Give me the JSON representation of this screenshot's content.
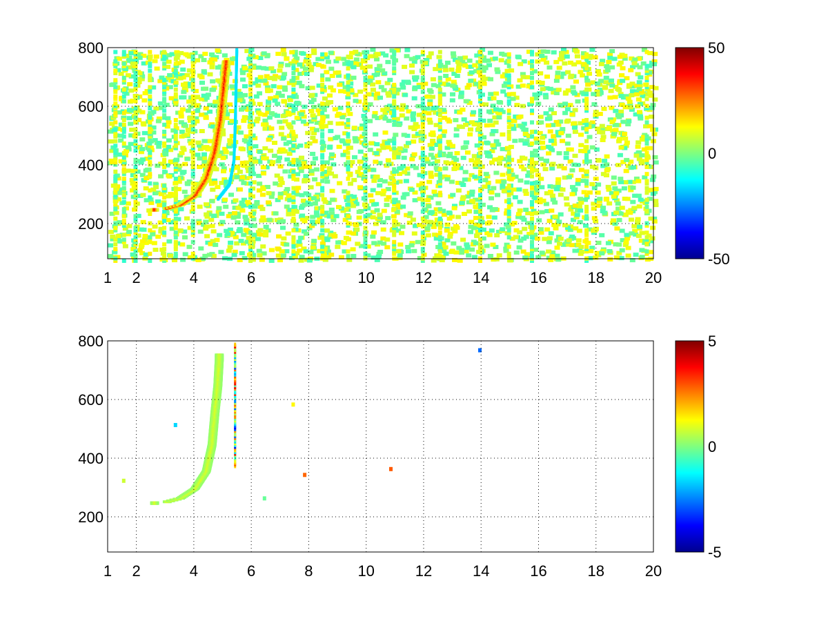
{
  "figure": {
    "background": "#ffffff"
  },
  "chart_data": [
    {
      "type": "heatmap",
      "title": "",
      "xlabel": "",
      "ylabel": "",
      "xlim": [
        1,
        20
      ],
      "ylim": [
        80,
        800
      ],
      "x_ticks": [
        "1",
        "2",
        "4",
        "6",
        "8",
        "10",
        "12",
        "14",
        "16",
        "18",
        "20"
      ],
      "y_ticks": [
        "200",
        "400",
        "600",
        "800"
      ],
      "grid": true,
      "colormap": "jet",
      "colorbar": {
        "min": -50,
        "max": 50,
        "tick_labels": [
          "50",
          "0",
          "-50"
        ]
      },
      "features": {
        "sparse_noise": true,
        "vertical_streaks_x": [
          1.2,
          1.5,
          1.9,
          2.4,
          2.9,
          3.3,
          3.9,
          5.9,
          7.4,
          8.4,
          9.3,
          9.9,
          10.9,
          11.9,
          12.5,
          13.9,
          14.9,
          15.7,
          17.6,
          19.7
        ],
        "curve": {
          "description": "",
          "points": [
            [
              2.6,
              255
            ],
            [
              3.0,
              255
            ],
            [
              3.5,
              268
            ],
            [
              4.0,
              300
            ],
            [
              4.4,
              360
            ],
            [
              4.7,
              450
            ],
            [
              4.9,
              560
            ],
            [
              5.0,
              660
            ],
            [
              5.1,
              760
            ]
          ],
          "peak_value": 40
        },
        "cyan_curve_points": [
          [
            4.8,
            290
          ],
          [
            5.2,
            340
          ],
          [
            5.35,
            420
          ],
          [
            5.4,
            560
          ],
          [
            5.45,
            800
          ]
        ]
      }
    },
    {
      "type": "heatmap",
      "title": "",
      "xlabel": "",
      "ylabel": "",
      "xlim": [
        1,
        20
      ],
      "ylim": [
        80,
        800
      ],
      "x_ticks": [
        "1",
        "2",
        "4",
        "6",
        "8",
        "10",
        "12",
        "14",
        "16",
        "18",
        "20"
      ],
      "y_ticks": [
        "200",
        "400",
        "600",
        "800"
      ],
      "grid": true,
      "colormap": "jet",
      "colorbar": {
        "min": -5,
        "max": 5,
        "tick_labels": [
          "5",
          "0",
          "-5"
        ]
      },
      "features": {
        "sparse_noise": false,
        "curve": {
          "points": [
            [
              2.6,
              255
            ],
            [
              3.0,
              255
            ],
            [
              3.5,
              268
            ],
            [
              4.0,
              300
            ],
            [
              4.4,
              360
            ],
            [
              4.6,
              450
            ],
            [
              4.7,
              560
            ],
            [
              4.8,
              650
            ],
            [
              4.85,
              740
            ]
          ],
          "value": 1
        },
        "vertical_line_x": 5.4,
        "isolated_points": [
          [
            13.9,
            775
          ],
          [
            7.4,
            590
          ],
          [
            7.8,
            350
          ],
          [
            10.8,
            370
          ],
          [
            6.4,
            270
          ],
          [
            1.5,
            330
          ],
          [
            3.3,
            520
          ]
        ]
      }
    }
  ]
}
